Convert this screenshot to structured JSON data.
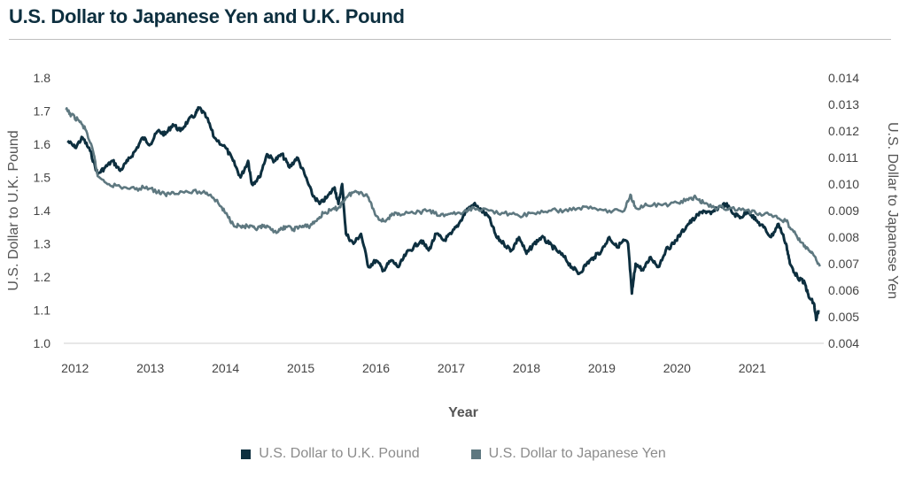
{
  "chart_data": {
    "type": "line",
    "title": "U.S. Dollar to Japanese Yen and U.K. Pound",
    "xlabel": "Year",
    "ylabel_left": "U.S. Dollar to U.K. Pound",
    "ylabel_right": "U.S. Dollar to Japanese Yen",
    "xlim": [
      2011.85,
      2021.95
    ],
    "ylim_left": [
      1.0,
      1.8
    ],
    "ylim_right": [
      0.004,
      0.014
    ],
    "x_ticks": [
      "2012",
      "2013",
      "2014",
      "2015",
      "2016",
      "2017",
      "2018",
      "2019",
      "2020",
      "2021"
    ],
    "y_ticks_left": [
      "1.8",
      "1.7",
      "1.6",
      "1.5",
      "1.4",
      "1.3",
      "1.2",
      "1.1",
      "1.0"
    ],
    "y_ticks_right": [
      "0.014",
      "0.013",
      "0.012",
      "0.011",
      "0.010",
      "0.009",
      "0.008",
      "0.007",
      "0.006",
      "0.005",
      "0.004"
    ],
    "grid": false,
    "legend_position": "bottom",
    "series": [
      {
        "name": "U.S. Dollar to U.K. Pound",
        "axis": "left",
        "color": "#0d2f3f",
        "points": [
          [
            2011.9,
            1.61
          ],
          [
            2012.0,
            1.59
          ],
          [
            2012.1,
            1.62
          ],
          [
            2012.2,
            1.58
          ],
          [
            2012.3,
            1.51
          ],
          [
            2012.4,
            1.53
          ],
          [
            2012.5,
            1.55
          ],
          [
            2012.6,
            1.52
          ],
          [
            2012.7,
            1.55
          ],
          [
            2012.8,
            1.58
          ],
          [
            2012.9,
            1.62
          ],
          [
            2013.0,
            1.6
          ],
          [
            2013.1,
            1.64
          ],
          [
            2013.2,
            1.63
          ],
          [
            2013.3,
            1.66
          ],
          [
            2013.4,
            1.64
          ],
          [
            2013.5,
            1.67
          ],
          [
            2013.6,
            1.69
          ],
          [
            2013.65,
            1.71
          ],
          [
            2013.75,
            1.68
          ],
          [
            2013.85,
            1.62
          ],
          [
            2014.0,
            1.59
          ],
          [
            2014.1,
            1.55
          ],
          [
            2014.2,
            1.5
          ],
          [
            2014.3,
            1.55
          ],
          [
            2014.35,
            1.48
          ],
          [
            2014.45,
            1.5
          ],
          [
            2014.55,
            1.57
          ],
          [
            2014.65,
            1.55
          ],
          [
            2014.75,
            1.57
          ],
          [
            2014.85,
            1.53
          ],
          [
            2014.95,
            1.56
          ],
          [
            2015.05,
            1.51
          ],
          [
            2015.15,
            1.45
          ],
          [
            2015.25,
            1.42
          ],
          [
            2015.35,
            1.44
          ],
          [
            2015.45,
            1.47
          ],
          [
            2015.5,
            1.42
          ],
          [
            2015.55,
            1.48
          ],
          [
            2015.6,
            1.33
          ],
          [
            2015.7,
            1.3
          ],
          [
            2015.8,
            1.33
          ],
          [
            2015.9,
            1.23
          ],
          [
            2016.0,
            1.25
          ],
          [
            2016.1,
            1.22
          ],
          [
            2016.2,
            1.25
          ],
          [
            2016.3,
            1.23
          ],
          [
            2016.4,
            1.27
          ],
          [
            2016.5,
            1.29
          ],
          [
            2016.6,
            1.31
          ],
          [
            2016.7,
            1.28
          ],
          [
            2016.8,
            1.33
          ],
          [
            2016.9,
            1.31
          ],
          [
            2017.0,
            1.33
          ],
          [
            2017.1,
            1.36
          ],
          [
            2017.2,
            1.4
          ],
          [
            2017.3,
            1.42
          ],
          [
            2017.4,
            1.4
          ],
          [
            2017.5,
            1.38
          ],
          [
            2017.6,
            1.32
          ],
          [
            2017.7,
            1.3
          ],
          [
            2017.8,
            1.28
          ],
          [
            2017.9,
            1.32
          ],
          [
            2018.0,
            1.27
          ],
          [
            2018.1,
            1.3
          ],
          [
            2018.2,
            1.32
          ],
          [
            2018.3,
            1.3
          ],
          [
            2018.4,
            1.28
          ],
          [
            2018.5,
            1.26
          ],
          [
            2018.6,
            1.23
          ],
          [
            2018.7,
            1.21
          ],
          [
            2018.8,
            1.24
          ],
          [
            2018.9,
            1.26
          ],
          [
            2019.0,
            1.28
          ],
          [
            2019.1,
            1.32
          ],
          [
            2019.2,
            1.29
          ],
          [
            2019.3,
            1.31
          ],
          [
            2019.35,
            1.3
          ],
          [
            2019.4,
            1.15
          ],
          [
            2019.45,
            1.24
          ],
          [
            2019.55,
            1.22
          ],
          [
            2019.65,
            1.26
          ],
          [
            2019.75,
            1.23
          ],
          [
            2019.85,
            1.28
          ],
          [
            2019.95,
            1.3
          ],
          [
            2020.05,
            1.33
          ],
          [
            2020.15,
            1.36
          ],
          [
            2020.25,
            1.38
          ],
          [
            2020.35,
            1.4
          ],
          [
            2020.45,
            1.39
          ],
          [
            2020.55,
            1.41
          ],
          [
            2020.65,
            1.42
          ],
          [
            2020.75,
            1.39
          ],
          [
            2020.85,
            1.38
          ],
          [
            2020.95,
            1.4
          ],
          [
            2021.05,
            1.37
          ],
          [
            2021.15,
            1.35
          ],
          [
            2021.25,
            1.32
          ],
          [
            2021.35,
            1.36
          ],
          [
            2021.45,
            1.3
          ],
          [
            2021.5,
            1.24
          ],
          [
            2021.6,
            1.2
          ],
          [
            2021.7,
            1.18
          ],
          [
            2021.75,
            1.14
          ],
          [
            2021.82,
            1.12
          ],
          [
            2021.85,
            1.07
          ],
          [
            2021.88,
            1.1
          ]
        ]
      },
      {
        "name": "U.S. Dollar to Japanese Yen",
        "axis": "right",
        "color": "#5e7880",
        "points": [
          [
            2011.88,
            0.0128
          ],
          [
            2011.95,
            0.0126
          ],
          [
            2012.05,
            0.0124
          ],
          [
            2012.15,
            0.012
          ],
          [
            2012.25,
            0.0111
          ],
          [
            2012.3,
            0.0103
          ],
          [
            2012.45,
            0.01
          ],
          [
            2012.6,
            0.0099
          ],
          [
            2012.8,
            0.0098
          ],
          [
            2012.95,
            0.0099
          ],
          [
            2013.1,
            0.0097
          ],
          [
            2013.2,
            0.0096
          ],
          [
            2013.3,
            0.0097
          ],
          [
            2013.5,
            0.0097
          ],
          [
            2013.7,
            0.0097
          ],
          [
            2013.8,
            0.0096
          ],
          [
            2013.9,
            0.0093
          ],
          [
            2014.0,
            0.0089
          ],
          [
            2014.1,
            0.0085
          ],
          [
            2014.2,
            0.0084
          ],
          [
            2014.3,
            0.0084
          ],
          [
            2014.4,
            0.0083
          ],
          [
            2014.5,
            0.0084
          ],
          [
            2014.6,
            0.0083
          ],
          [
            2014.7,
            0.0082
          ],
          [
            2014.8,
            0.0084
          ],
          [
            2014.9,
            0.0083
          ],
          [
            2015.0,
            0.0084
          ],
          [
            2015.1,
            0.0084
          ],
          [
            2015.2,
            0.0086
          ],
          [
            2015.3,
            0.0089
          ],
          [
            2015.4,
            0.009
          ],
          [
            2015.5,
            0.0091
          ],
          [
            2015.6,
            0.0095
          ],
          [
            2015.7,
            0.0097
          ],
          [
            2015.8,
            0.0097
          ],
          [
            2015.9,
            0.0095
          ],
          [
            2016.0,
            0.0088
          ],
          [
            2016.1,
            0.0086
          ],
          [
            2016.2,
            0.0088
          ],
          [
            2016.3,
            0.0089
          ],
          [
            2016.5,
            0.0089
          ],
          [
            2016.7,
            0.009
          ],
          [
            2016.85,
            0.0088
          ],
          [
            2017.0,
            0.0089
          ],
          [
            2017.15,
            0.0089
          ],
          [
            2017.3,
            0.0091
          ],
          [
            2017.5,
            0.009
          ],
          [
            2017.7,
            0.0089
          ],
          [
            2017.9,
            0.0088
          ],
          [
            2018.1,
            0.0089
          ],
          [
            2018.3,
            0.009
          ],
          [
            2018.5,
            0.009
          ],
          [
            2018.7,
            0.0091
          ],
          [
            2018.9,
            0.0091
          ],
          [
            2019.1,
            0.009
          ],
          [
            2019.3,
            0.009
          ],
          [
            2019.38,
            0.0096
          ],
          [
            2019.45,
            0.0091
          ],
          [
            2019.6,
            0.0092
          ],
          [
            2019.8,
            0.0092
          ],
          [
            2020.0,
            0.0093
          ],
          [
            2020.15,
            0.0094
          ],
          [
            2020.25,
            0.0095
          ],
          [
            2020.35,
            0.0093
          ],
          [
            2020.5,
            0.0091
          ],
          [
            2020.7,
            0.0091
          ],
          [
            2020.9,
            0.009
          ],
          [
            2021.1,
            0.0089
          ],
          [
            2021.3,
            0.0088
          ],
          [
            2021.45,
            0.0086
          ],
          [
            2021.55,
            0.0082
          ],
          [
            2021.65,
            0.0078
          ],
          [
            2021.75,
            0.0075
          ],
          [
            2021.82,
            0.0073
          ],
          [
            2021.9,
            0.0069
          ]
        ]
      }
    ]
  }
}
